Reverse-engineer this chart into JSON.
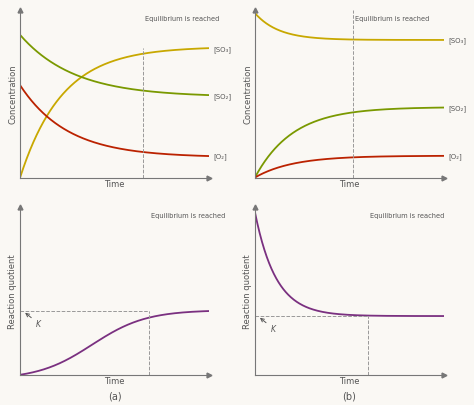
{
  "bg_color": "#faf8f4",
  "line_color_SO3": "#c8a800",
  "line_color_SO2": "#7a9900",
  "line_color_O2": "#bb2200",
  "line_color_Qc": "#7a3080",
  "dashed_color": "#999999",
  "text_color": "#555555",
  "axis_color": "#777777",
  "xlabel": "Time",
  "ylabel_conc": "Concentration",
  "ylabel_rq": "Reaction quotient",
  "label_SO3": "[SO₃]",
  "label_SO2": "[SO₂]",
  "label_O2": "[O₂]",
  "eq_label": "Equilibrium is reached",
  "K_label": "K",
  "sub_a": "(a)",
  "sub_b": "(b)"
}
